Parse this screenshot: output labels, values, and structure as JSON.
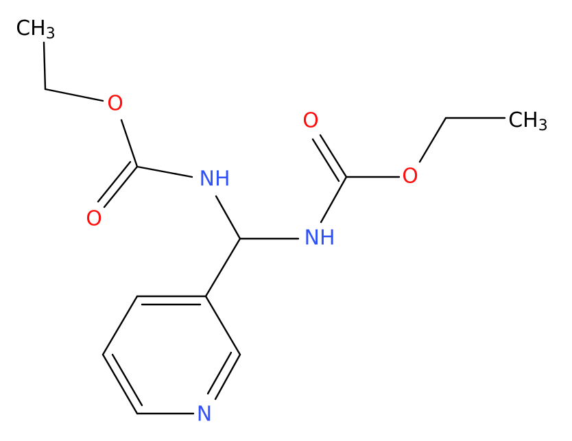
{
  "atoms": [
    {
      "main": "CH",
      "sub": "3"
    },
    {
      "main": "O"
    },
    {
      "main": "O"
    },
    {
      "main": "NH"
    },
    {
      "main": "NH"
    },
    {
      "main": "O"
    },
    {
      "main": "O"
    },
    {
      "main": "CH",
      "sub": "3"
    },
    {
      "main": "N"
    }
  ]
}
